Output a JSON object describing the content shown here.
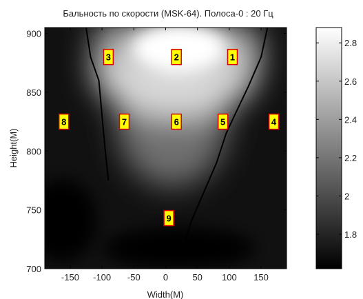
{
  "chart_data": {
    "type": "heatmap",
    "title": "Бальность по скорости (MSK-64). Полоса-0 : 20 Гц",
    "xlabel": "Width(M)",
    "ylabel": "Height(M)",
    "xlim": [
      -190,
      190
    ],
    "ylim": [
      700,
      905
    ],
    "xticks": [
      -150,
      -100,
      -50,
      0,
      50,
      100,
      150
    ],
    "yticks": [
      700,
      750,
      800,
      850,
      900
    ],
    "colorbar": {
      "range": [
        1.62,
        2.88
      ],
      "ticks": [
        1.8,
        2,
        2.2,
        2.4,
        2.6,
        2.8
      ],
      "colormap": "gray"
    },
    "colors": {
      "low": "#000000",
      "high": "#ffffff",
      "marker_fill": "#ffff00",
      "marker_border": "#d80000",
      "contour": "#000000"
    },
    "contour_left": [
      [
        -125,
        905
      ],
      [
        -118,
        880
      ],
      [
        -105,
        860
      ],
      [
        -100,
        830
      ],
      [
        -95,
        800
      ],
      [
        -90,
        775
      ]
    ],
    "contour_right": [
      [
        160,
        905
      ],
      [
        150,
        880
      ],
      [
        130,
        855
      ],
      [
        108,
        830
      ],
      [
        95,
        815
      ],
      [
        80,
        790
      ],
      [
        60,
        765
      ],
      [
        40,
        740
      ],
      [
        25,
        712
      ]
    ],
    "markers": [
      {
        "label": "1",
        "x": 105,
        "y": 880
      },
      {
        "label": "2",
        "x": 17,
        "y": 880
      },
      {
        "label": "3",
        "x": -90,
        "y": 880
      },
      {
        "label": "4",
        "x": 170,
        "y": 825
      },
      {
        "label": "5",
        "x": 90,
        "y": 825
      },
      {
        "label": "6",
        "x": 17,
        "y": 825
      },
      {
        "label": "7",
        "x": -65,
        "y": 825
      },
      {
        "label": "8",
        "x": -160,
        "y": 825
      },
      {
        "label": "9",
        "x": 5,
        "y": 743
      }
    ]
  }
}
